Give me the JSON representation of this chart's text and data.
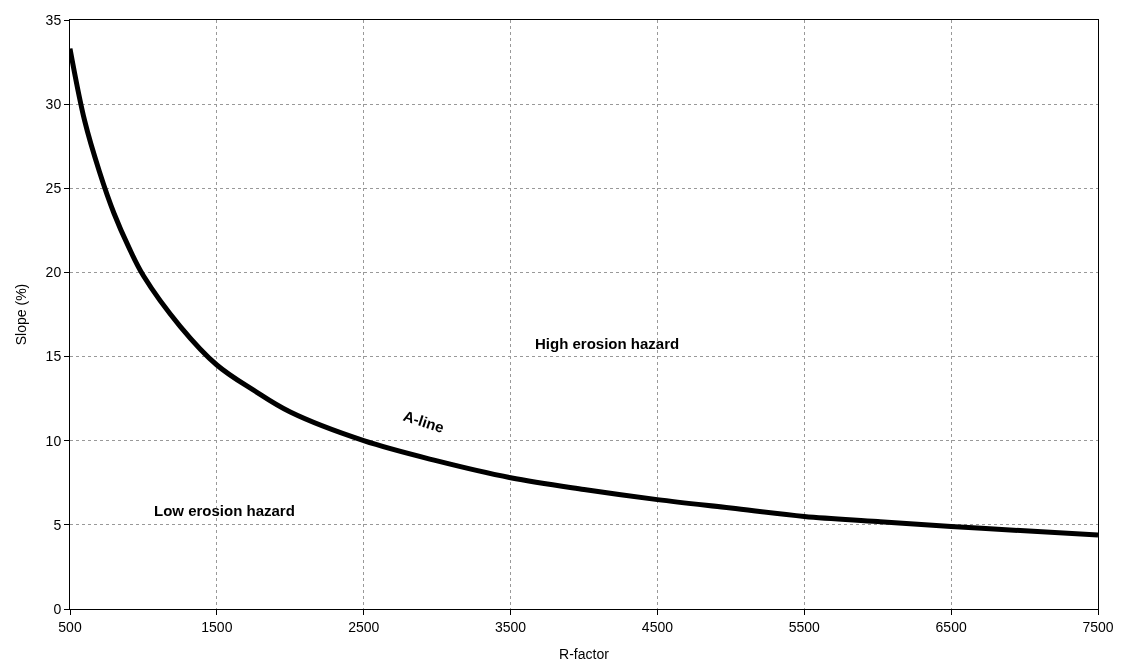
{
  "chart_data": {
    "type": "line",
    "xlabel": "R-factor",
    "ylabel": "Slope (%)",
    "x": [
      500,
      600,
      700,
      800,
      900,
      1000,
      1250,
      1500,
      1750,
      2000,
      2500,
      3000,
      3500,
      4000,
      4500,
      5000,
      5500,
      6000,
      6500,
      7000,
      7500
    ],
    "series": [
      {
        "color": "#000000",
        "values": [
          33.3,
          29,
          26,
          23.5,
          21.5,
          19.8,
          16.8,
          14.5,
          13,
          11.7,
          10,
          8.8,
          7.8,
          7.1,
          6.5,
          6,
          5.5,
          5.2,
          4.9,
          4.65,
          4.4
        ]
      }
    ],
    "xlim": [
      500,
      7500
    ],
    "xticks": [
      500,
      1500,
      2500,
      3500,
      4500,
      5500,
      6500,
      7500
    ],
    "ylim": [
      0,
      35
    ],
    "yticks": [
      0,
      5,
      10,
      15,
      20,
      25,
      30,
      35
    ],
    "grid": true,
    "marker": "none",
    "line_style": "solid",
    "annotations": [
      "High erosion hazard",
      "Low erosion hazard",
      "A-line"
    ]
  }
}
